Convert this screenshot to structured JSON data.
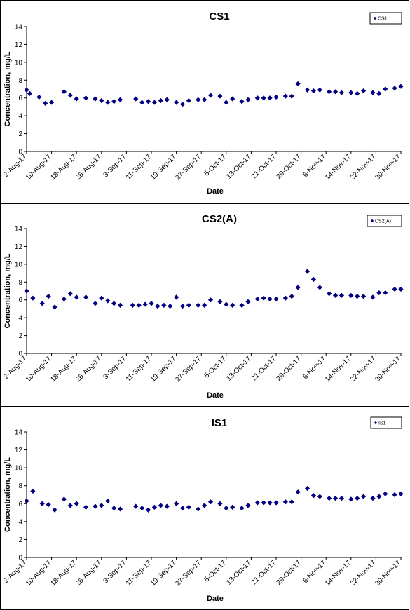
{
  "chart_data": [
    {
      "type": "scatter",
      "title": "CS1",
      "xlabel": "Date",
      "ylabel": "Concentration, mg/L",
      "legend": [
        "CS1"
      ],
      "legend_position": "top-right",
      "ylim": [
        0,
        14
      ],
      "y_ticks": [
        "0",
        "2",
        "4",
        "6",
        "8",
        "10",
        "12",
        "14"
      ],
      "x_ticks": [
        "2-Aug-17",
        "10-Aug-17",
        "18-Aug-17",
        "26-Aug-17",
        "3-Sep-17",
        "11-Sep-17",
        "19-Sep-17",
        "27-Sep-17",
        "5-Oct-17",
        "13-Oct-17",
        "21-Oct-17",
        "29-Oct-17",
        "6-Nov-17",
        "14-Nov-17",
        "22-Nov-17",
        "30-Nov-17"
      ],
      "series_color": "#000080",
      "points": [
        {
          "x": "2-Aug-17",
          "y": 6.9
        },
        {
          "x": "3-Aug-17",
          "y": 6.5
        },
        {
          "x": "6-Aug-17",
          "y": 6.1
        },
        {
          "x": "8-Aug-17",
          "y": 5.4
        },
        {
          "x": "10-Aug-17",
          "y": 5.5
        },
        {
          "x": "14-Aug-17",
          "y": 6.7
        },
        {
          "x": "16-Aug-17",
          "y": 6.3
        },
        {
          "x": "18-Aug-17",
          "y": 5.9
        },
        {
          "x": "21-Aug-17",
          "y": 6.0
        },
        {
          "x": "24-Aug-17",
          "y": 5.9
        },
        {
          "x": "26-Aug-17",
          "y": 5.7
        },
        {
          "x": "28-Aug-17",
          "y": 5.5
        },
        {
          "x": "30-Aug-17",
          "y": 5.6
        },
        {
          "x": "1-Sep-17",
          "y": 5.8
        },
        {
          "x": "6-Sep-17",
          "y": 5.9
        },
        {
          "x": "8-Sep-17",
          "y": 5.5
        },
        {
          "x": "10-Sep-17",
          "y": 5.6
        },
        {
          "x": "12-Sep-17",
          "y": 5.5
        },
        {
          "x": "14-Sep-17",
          "y": 5.7
        },
        {
          "x": "16-Sep-17",
          "y": 5.8
        },
        {
          "x": "19-Sep-17",
          "y": 5.5
        },
        {
          "x": "21-Sep-17",
          "y": 5.3
        },
        {
          "x": "23-Sep-17",
          "y": 5.7
        },
        {
          "x": "26-Sep-17",
          "y": 5.8
        },
        {
          "x": "28-Sep-17",
          "y": 5.8
        },
        {
          "x": "30-Sep-17",
          "y": 6.3
        },
        {
          "x": "3-Oct-17",
          "y": 6.2
        },
        {
          "x": "5-Oct-17",
          "y": 5.5
        },
        {
          "x": "7-Oct-17",
          "y": 5.9
        },
        {
          "x": "10-Oct-17",
          "y": 5.6
        },
        {
          "x": "12-Oct-17",
          "y": 5.8
        },
        {
          "x": "15-Oct-17",
          "y": 6.0
        },
        {
          "x": "17-Oct-17",
          "y": 6.0
        },
        {
          "x": "19-Oct-17",
          "y": 6.0
        },
        {
          "x": "21-Oct-17",
          "y": 6.1
        },
        {
          "x": "24-Oct-17",
          "y": 6.2
        },
        {
          "x": "26-Oct-17",
          "y": 6.2
        },
        {
          "x": "28-Oct-17",
          "y": 7.6
        },
        {
          "x": "31-Oct-17",
          "y": 6.9
        },
        {
          "x": "2-Nov-17",
          "y": 6.8
        },
        {
          "x": "4-Nov-17",
          "y": 6.9
        },
        {
          "x": "7-Nov-17",
          "y": 6.7
        },
        {
          "x": "9-Nov-17",
          "y": 6.7
        },
        {
          "x": "11-Nov-17",
          "y": 6.6
        },
        {
          "x": "14-Nov-17",
          "y": 6.6
        },
        {
          "x": "16-Nov-17",
          "y": 6.5
        },
        {
          "x": "18-Nov-17",
          "y": 6.8
        },
        {
          "x": "21-Nov-17",
          "y": 6.6
        },
        {
          "x": "23-Nov-17",
          "y": 6.5
        },
        {
          "x": "25-Nov-17",
          "y": 7.0
        },
        {
          "x": "28-Nov-17",
          "y": 7.1
        },
        {
          "x": "30-Nov-17",
          "y": 7.3
        }
      ]
    },
    {
      "type": "scatter",
      "title": "CS2(A)",
      "xlabel": "Date",
      "ylabel": "Concentration, mg/L",
      "legend": [
        "CS2(A)"
      ],
      "legend_position": "top-right",
      "ylim": [
        0,
        14
      ],
      "y_ticks": [
        "0",
        "2",
        "4",
        "6",
        "8",
        "10",
        "12",
        "14"
      ],
      "x_ticks": [
        "2-Aug-17",
        "10-Aug-17",
        "18-Aug-17",
        "26-Aug-17",
        "3-Sep-17",
        "11-Sep-17",
        "19-Sep-17",
        "27-Sep-17",
        "5-Oct-17",
        "13-Oct-17",
        "21-Oct-17",
        "29-Oct-17",
        "6-Nov-17",
        "14-Nov-17",
        "22-Nov-17",
        "30-Nov-17"
      ],
      "series_color": "#000080",
      "points": [
        {
          "x": "2-Aug-17",
          "y": 7.0
        },
        {
          "x": "4-Aug-17",
          "y": 6.2
        },
        {
          "x": "7-Aug-17",
          "y": 5.6
        },
        {
          "x": "9-Aug-17",
          "y": 6.4
        },
        {
          "x": "11-Aug-17",
          "y": 5.2
        },
        {
          "x": "14-Aug-17",
          "y": 6.1
        },
        {
          "x": "16-Aug-17",
          "y": 6.7
        },
        {
          "x": "18-Aug-17",
          "y": 6.3
        },
        {
          "x": "21-Aug-17",
          "y": 6.3
        },
        {
          "x": "24-Aug-17",
          "y": 5.6
        },
        {
          "x": "26-Aug-17",
          "y": 6.2
        },
        {
          "x": "28-Aug-17",
          "y": 5.9
        },
        {
          "x": "30-Aug-17",
          "y": 5.6
        },
        {
          "x": "1-Sep-17",
          "y": 5.4
        },
        {
          "x": "5-Sep-17",
          "y": 5.4
        },
        {
          "x": "7-Sep-17",
          "y": 5.4
        },
        {
          "x": "9-Sep-17",
          "y": 5.5
        },
        {
          "x": "11-Sep-17",
          "y": 5.6
        },
        {
          "x": "13-Sep-17",
          "y": 5.3
        },
        {
          "x": "15-Sep-17",
          "y": 5.4
        },
        {
          "x": "17-Sep-17",
          "y": 5.3
        },
        {
          "x": "19-Sep-17",
          "y": 6.3
        },
        {
          "x": "21-Sep-17",
          "y": 5.3
        },
        {
          "x": "23-Sep-17",
          "y": 5.4
        },
        {
          "x": "26-Sep-17",
          "y": 5.4
        },
        {
          "x": "28-Sep-17",
          "y": 5.4
        },
        {
          "x": "30-Sep-17",
          "y": 6.0
        },
        {
          "x": "3-Oct-17",
          "y": 5.8
        },
        {
          "x": "5-Oct-17",
          "y": 5.5
        },
        {
          "x": "7-Oct-17",
          "y": 5.4
        },
        {
          "x": "10-Oct-17",
          "y": 5.4
        },
        {
          "x": "12-Oct-17",
          "y": 5.8
        },
        {
          "x": "15-Oct-17",
          "y": 6.1
        },
        {
          "x": "17-Oct-17",
          "y": 6.2
        },
        {
          "x": "19-Oct-17",
          "y": 6.1
        },
        {
          "x": "21-Oct-17",
          "y": 6.1
        },
        {
          "x": "24-Oct-17",
          "y": 6.2
        },
        {
          "x": "26-Oct-17",
          "y": 6.4
        },
        {
          "x": "28-Oct-17",
          "y": 7.4
        },
        {
          "x": "31-Oct-17",
          "y": 9.2
        },
        {
          "x": "2-Nov-17",
          "y": 8.3
        },
        {
          "x": "4-Nov-17",
          "y": 7.4
        },
        {
          "x": "7-Nov-17",
          "y": 6.7
        },
        {
          "x": "9-Nov-17",
          "y": 6.5
        },
        {
          "x": "11-Nov-17",
          "y": 6.5
        },
        {
          "x": "14-Nov-17",
          "y": 6.5
        },
        {
          "x": "16-Nov-17",
          "y": 6.4
        },
        {
          "x": "18-Nov-17",
          "y": 6.4
        },
        {
          "x": "21-Nov-17",
          "y": 6.3
        },
        {
          "x": "23-Nov-17",
          "y": 6.8
        },
        {
          "x": "25-Nov-17",
          "y": 6.8
        },
        {
          "x": "28-Nov-17",
          "y": 7.2
        },
        {
          "x": "30-Nov-17",
          "y": 7.2
        }
      ]
    },
    {
      "type": "scatter",
      "title": "IS1",
      "xlabel": "Date",
      "ylabel": "Concentration, mg/L",
      "legend": [
        "IS1"
      ],
      "legend_position": "top-right",
      "ylim": [
        0,
        14
      ],
      "y_ticks": [
        "0",
        "2",
        "4",
        "6",
        "8",
        "10",
        "12",
        "14"
      ],
      "x_ticks": [
        "2-Aug-17",
        "10-Aug-17",
        "18-Aug-17",
        "26-Aug-17",
        "3-Sep-17",
        "11-Sep-17",
        "19-Sep-17",
        "27-Sep-17",
        "5-Oct-17",
        "13-Oct-17",
        "21-Oct-17",
        "29-Oct-17",
        "6-Nov-17",
        "14-Nov-17",
        "22-Nov-17",
        "30-Nov-17"
      ],
      "series_color": "#000080",
      "points": [
        {
          "x": "2-Aug-17",
          "y": 6.3
        },
        {
          "x": "4-Aug-17",
          "y": 7.4
        },
        {
          "x": "7-Aug-17",
          "y": 6.0
        },
        {
          "x": "9-Aug-17",
          "y": 5.9
        },
        {
          "x": "11-Aug-17",
          "y": 5.3
        },
        {
          "x": "14-Aug-17",
          "y": 6.5
        },
        {
          "x": "16-Aug-17",
          "y": 5.8
        },
        {
          "x": "18-Aug-17",
          "y": 6.0
        },
        {
          "x": "21-Aug-17",
          "y": 5.6
        },
        {
          "x": "24-Aug-17",
          "y": 5.7
        },
        {
          "x": "26-Aug-17",
          "y": 5.8
        },
        {
          "x": "28-Aug-17",
          "y": 6.3
        },
        {
          "x": "30-Aug-17",
          "y": 5.5
        },
        {
          "x": "1-Sep-17",
          "y": 5.4
        },
        {
          "x": "6-Sep-17",
          "y": 5.7
        },
        {
          "x": "8-Sep-17",
          "y": 5.5
        },
        {
          "x": "10-Sep-17",
          "y": 5.3
        },
        {
          "x": "12-Sep-17",
          "y": 5.6
        },
        {
          "x": "14-Sep-17",
          "y": 5.8
        },
        {
          "x": "16-Sep-17",
          "y": 5.7
        },
        {
          "x": "19-Sep-17",
          "y": 6.0
        },
        {
          "x": "21-Sep-17",
          "y": 5.5
        },
        {
          "x": "23-Sep-17",
          "y": 5.6
        },
        {
          "x": "26-Sep-17",
          "y": 5.4
        },
        {
          "x": "28-Sep-17",
          "y": 5.8
        },
        {
          "x": "30-Sep-17",
          "y": 6.2
        },
        {
          "x": "3-Oct-17",
          "y": 6.0
        },
        {
          "x": "5-Oct-17",
          "y": 5.5
        },
        {
          "x": "7-Oct-17",
          "y": 5.6
        },
        {
          "x": "10-Oct-17",
          "y": 5.5
        },
        {
          "x": "12-Oct-17",
          "y": 5.8
        },
        {
          "x": "15-Oct-17",
          "y": 6.1
        },
        {
          "x": "17-Oct-17",
          "y": 6.1
        },
        {
          "x": "19-Oct-17",
          "y": 6.1
        },
        {
          "x": "21-Oct-17",
          "y": 6.1
        },
        {
          "x": "24-Oct-17",
          "y": 6.2
        },
        {
          "x": "26-Oct-17",
          "y": 6.2
        },
        {
          "x": "28-Oct-17",
          "y": 7.3
        },
        {
          "x": "31-Oct-17",
          "y": 7.7
        },
        {
          "x": "2-Nov-17",
          "y": 6.9
        },
        {
          "x": "4-Nov-17",
          "y": 6.8
        },
        {
          "x": "7-Nov-17",
          "y": 6.6
        },
        {
          "x": "9-Nov-17",
          "y": 6.6
        },
        {
          "x": "11-Nov-17",
          "y": 6.6
        },
        {
          "x": "14-Nov-17",
          "y": 6.5
        },
        {
          "x": "16-Nov-17",
          "y": 6.6
        },
        {
          "x": "18-Nov-17",
          "y": 6.8
        },
        {
          "x": "21-Nov-17",
          "y": 6.6
        },
        {
          "x": "23-Nov-17",
          "y": 6.8
        },
        {
          "x": "25-Nov-17",
          "y": 7.1
        },
        {
          "x": "28-Nov-17",
          "y": 7.0
        },
        {
          "x": "30-Nov-17",
          "y": 7.1
        }
      ]
    }
  ]
}
